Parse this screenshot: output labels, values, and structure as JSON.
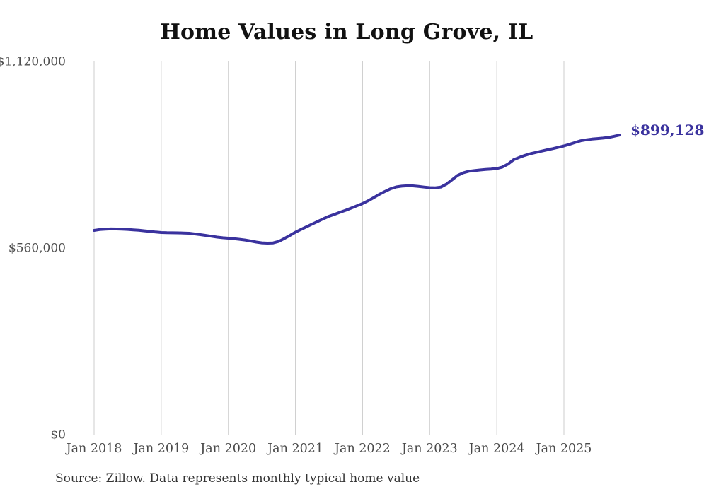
{
  "page": {
    "title": "Home Values in Long Grove, IL",
    "source_note": "Source: Zillow. Data represents monthly typical home value",
    "end_label": "$899,128"
  },
  "chart_data": {
    "type": "line",
    "title": "Home Values in Long Grove, IL",
    "source_note": "Source: Zillow. Data represents monthly typical home value",
    "legend": "none",
    "grid": "vertical-only",
    "ylim": [
      0,
      1120000
    ],
    "y_ticks": [
      {
        "label": "$0",
        "value": 0
      },
      {
        "label": "$560,000",
        "value": 560000
      },
      {
        "label": "$1,120,000",
        "value": 1120000
      }
    ],
    "x_tick_labels": [
      "Jan 2018",
      "Jan 2019",
      "Jan 2020",
      "Jan 2021",
      "Jan 2022",
      "Jan 2023",
      "Jan 2024",
      "Jan 2025"
    ],
    "end_label": "$899,128",
    "final_value": 899128,
    "colors": {
      "line": "#3a329e",
      "end_label": "#3a329e",
      "grid": "#cccccc",
      "tick_text": "#4d4d4d",
      "title_text": "#111111",
      "source_text": "#333333"
    },
    "series": [
      {
        "name": "Typical home value (monthly)",
        "x_start": "2018-01",
        "x_end": "2025-11",
        "x_interval": "month",
        "values": [
          613000,
          615500,
          616800,
          617400,
          617300,
          616800,
          615900,
          614800,
          613400,
          611800,
          610000,
          608200,
          606600,
          606000,
          605800,
          605600,
          605200,
          604500,
          602400,
          600300,
          598000,
          595500,
          592800,
          591000,
          589700,
          588000,
          586200,
          584200,
          581200,
          578000,
          575800,
          574800,
          575500,
          580000,
          588600,
          598000,
          607800,
          616000,
          624000,
          632100,
          640000,
          648000,
          655400,
          661500,
          667500,
          673500,
          680000,
          686800,
          693600,
          702000,
          711500,
          721200,
          730000,
          738000,
          743500,
          745800,
          746800,
          746600,
          745000,
          743000,
          741300,
          741000,
          743000,
          752000,
          765000,
          778000,
          786000,
          790500,
          792500,
          794400,
          795800,
          797000,
          798600,
          803000,
          812000,
          825200,
          832000,
          838000,
          843200,
          847000,
          851000,
          854900,
          858500,
          862500,
          866500,
          871500,
          877000,
          882000,
          885000,
          887000,
          888500,
          890000,
          892000,
          895500,
          899128
        ]
      }
    ]
  }
}
